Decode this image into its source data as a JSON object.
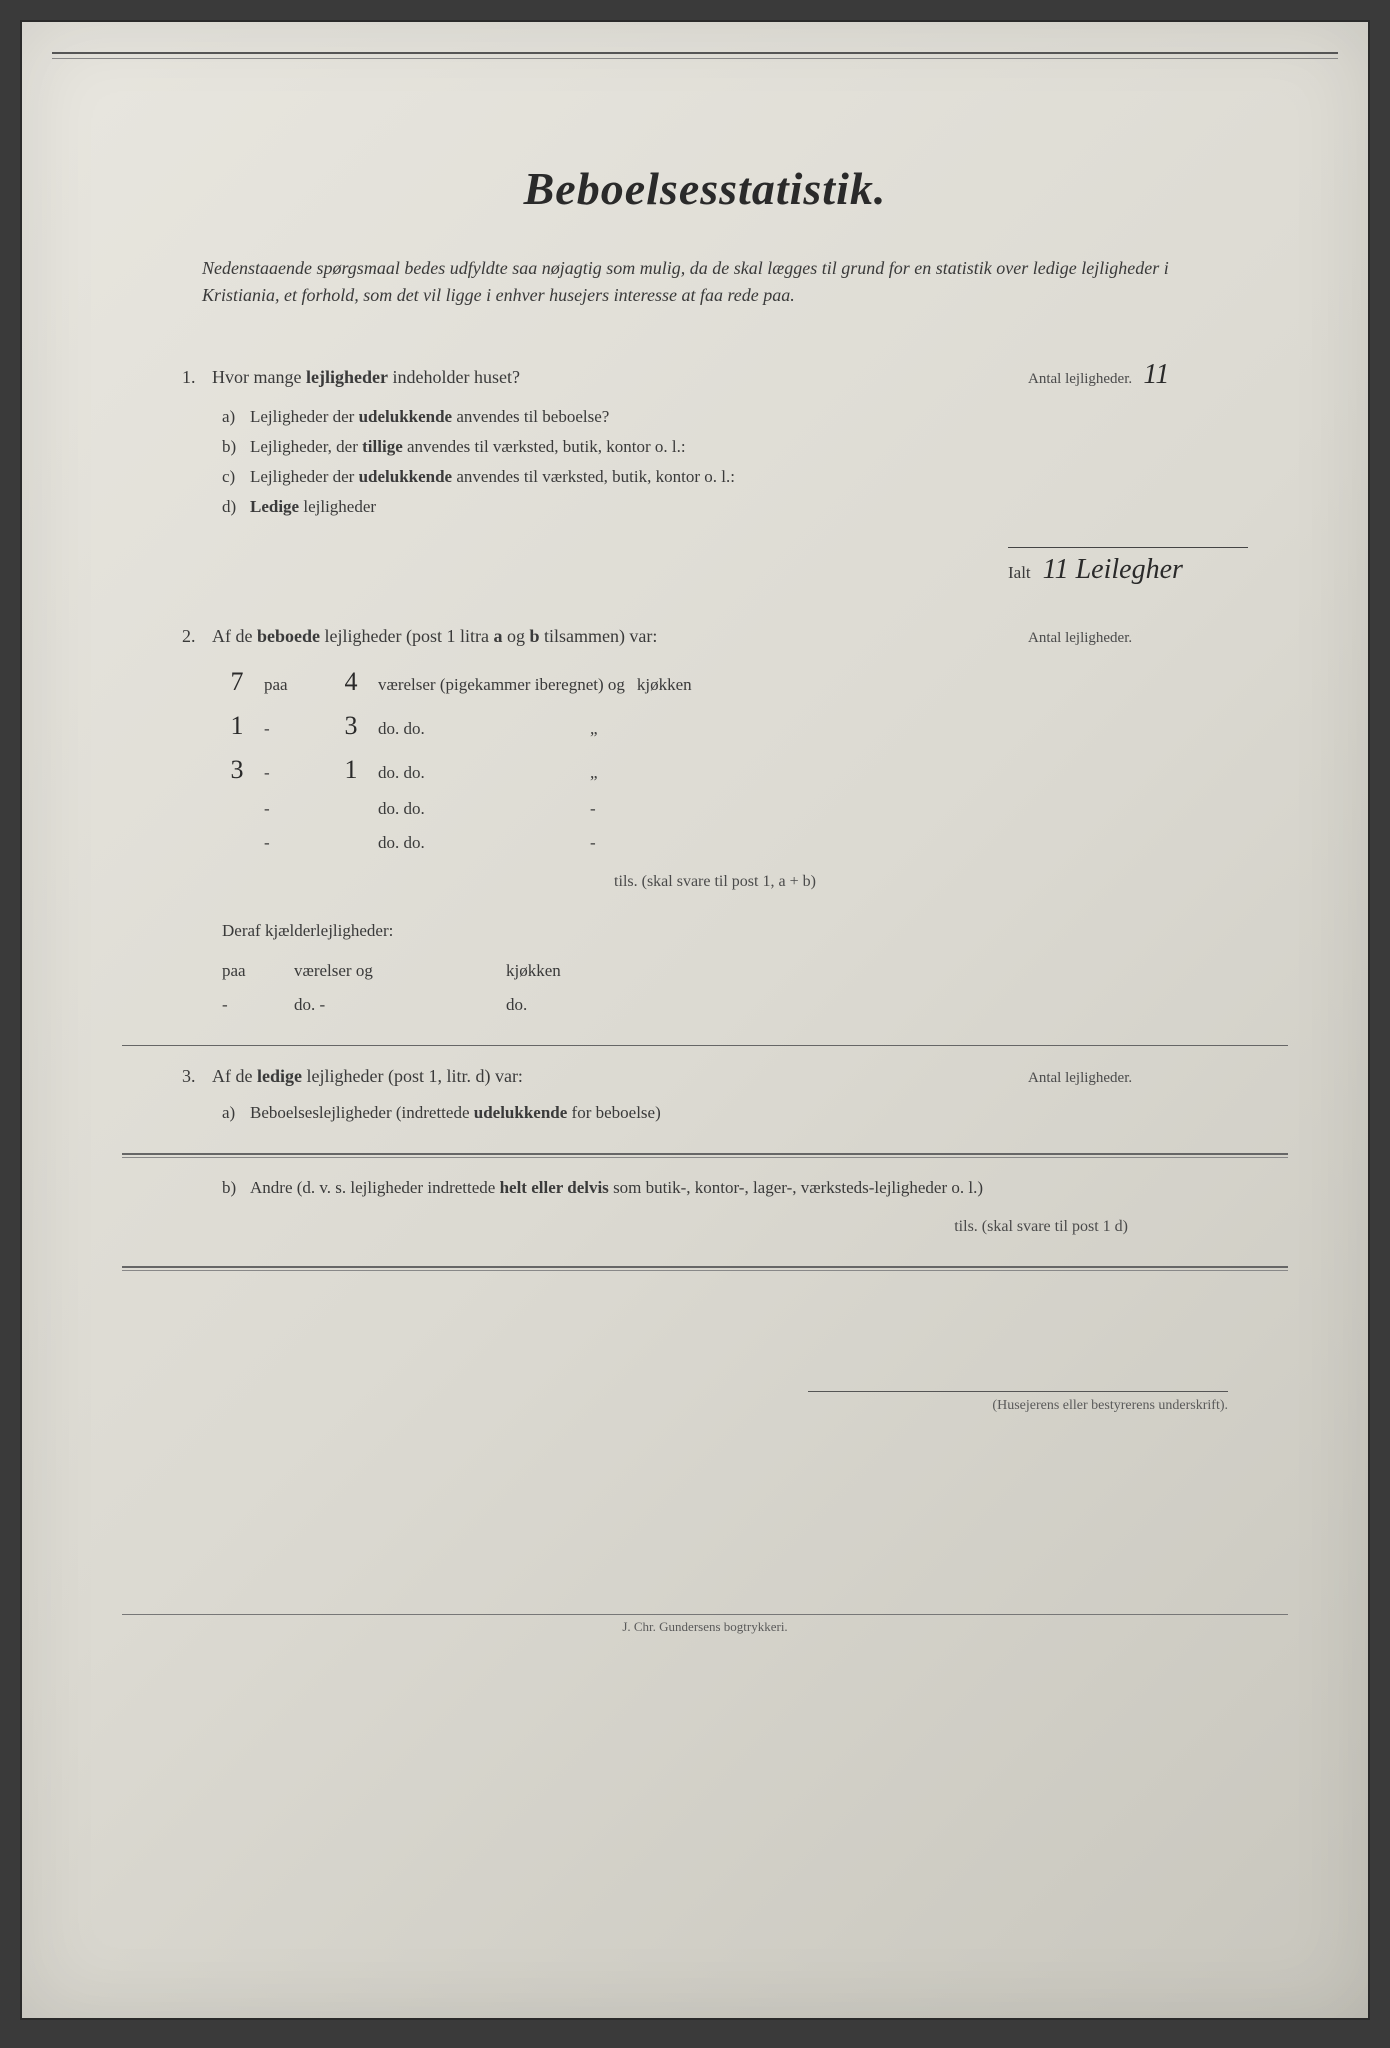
{
  "title": "Beboelsesstatistik.",
  "intro": "Nedenstaaende spørgsmaal bedes udfyldte saa nøjagtig som mulig, da de skal lægges til grund for en statistik over ledige lejligheder i Kristiania, et forhold, som det vil ligge i enhver husejers interesse at faa rede paa.",
  "q1": {
    "num": "1.",
    "text_a": "Hvor mange ",
    "text_b": "lejligheder",
    "text_c": " indeholder huset?",
    "right_label": "Antal lejligheder.",
    "right_value": "11",
    "a": {
      "l": "a)",
      "t1": "Lejligheder der ",
      "b": "udelukkende",
      "t2": " anvendes til beboelse?"
    },
    "b": {
      "l": "b)",
      "t1": "Lejligheder, der ",
      "b": "tillige",
      "t2": " anvendes til værksted, butik, kontor o. l.:"
    },
    "c": {
      "l": "c)",
      "t1": "Lejligheder der ",
      "b": "udelukkende",
      "t2": " anvendes til værksted, butik, kontor o. l.:"
    },
    "d": {
      "l": "d)",
      "b": "Ledige",
      "t2": " lejligheder"
    }
  },
  "ialt": {
    "label": "Ialt",
    "value": "11 Leilegher"
  },
  "q2": {
    "num": "2.",
    "t1": "Af de ",
    "b1": "beboede",
    "t2": " lejligheder (post 1 litra ",
    "b2": "a",
    "t3": " og ",
    "b3": "b",
    "t4": " tilsammen) var:",
    "right_label": "Antal lejligheder.",
    "rows": [
      {
        "c1": "7",
        "paa": "paa",
        "c2": "4",
        "c3": "værelser (pigekammer iberegnet) og",
        "c4": "kjøkken"
      },
      {
        "c1": "1",
        "paa": "-",
        "c2": "3",
        "c3": "do.              do.",
        "c4": "„"
      },
      {
        "c1": "3",
        "paa": "-",
        "c2": "1",
        "c3": "do.              do.",
        "c4": "„"
      },
      {
        "c1": "",
        "paa": "-",
        "c2": "",
        "c3": "do.              do.",
        "c4": "-"
      },
      {
        "c1": "",
        "paa": "-",
        "c2": "",
        "c3": "do.              do.",
        "c4": "-"
      }
    ],
    "tils": "tils. (skal svare til post 1, a + b)",
    "deraf": "Deraf kjælderlejligheder:",
    "deraf_rows": [
      {
        "paa": "paa",
        "v": "værelser og",
        "k": "kjøkken"
      },
      {
        "paa": "-",
        "v": "do.        -",
        "k": "do."
      }
    ]
  },
  "q3": {
    "num": "3.",
    "t1": "Af de ",
    "b1": "ledige",
    "t2": " lejligheder (post 1, litr. d) var:",
    "right_label": "Antal lejligheder.",
    "a": {
      "l": "a)",
      "t": "Beboelseslejligheder (indrettede ",
      "b": "udelukkende",
      "t2": " for beboelse)"
    },
    "b": {
      "l": "b)",
      "t": "Andre (d. v. s. lejligheder indrettede ",
      "b": "helt eller delvis",
      "t2": " som butik-, kontor-, lager-, værksteds-lejligheder o. l.)"
    },
    "tils": "tils. (skal svare til post 1 d)"
  },
  "signature": "(Husejerens eller bestyrerens underskrift).",
  "footer": "J. Chr. Gundersens bogtrykkeri."
}
